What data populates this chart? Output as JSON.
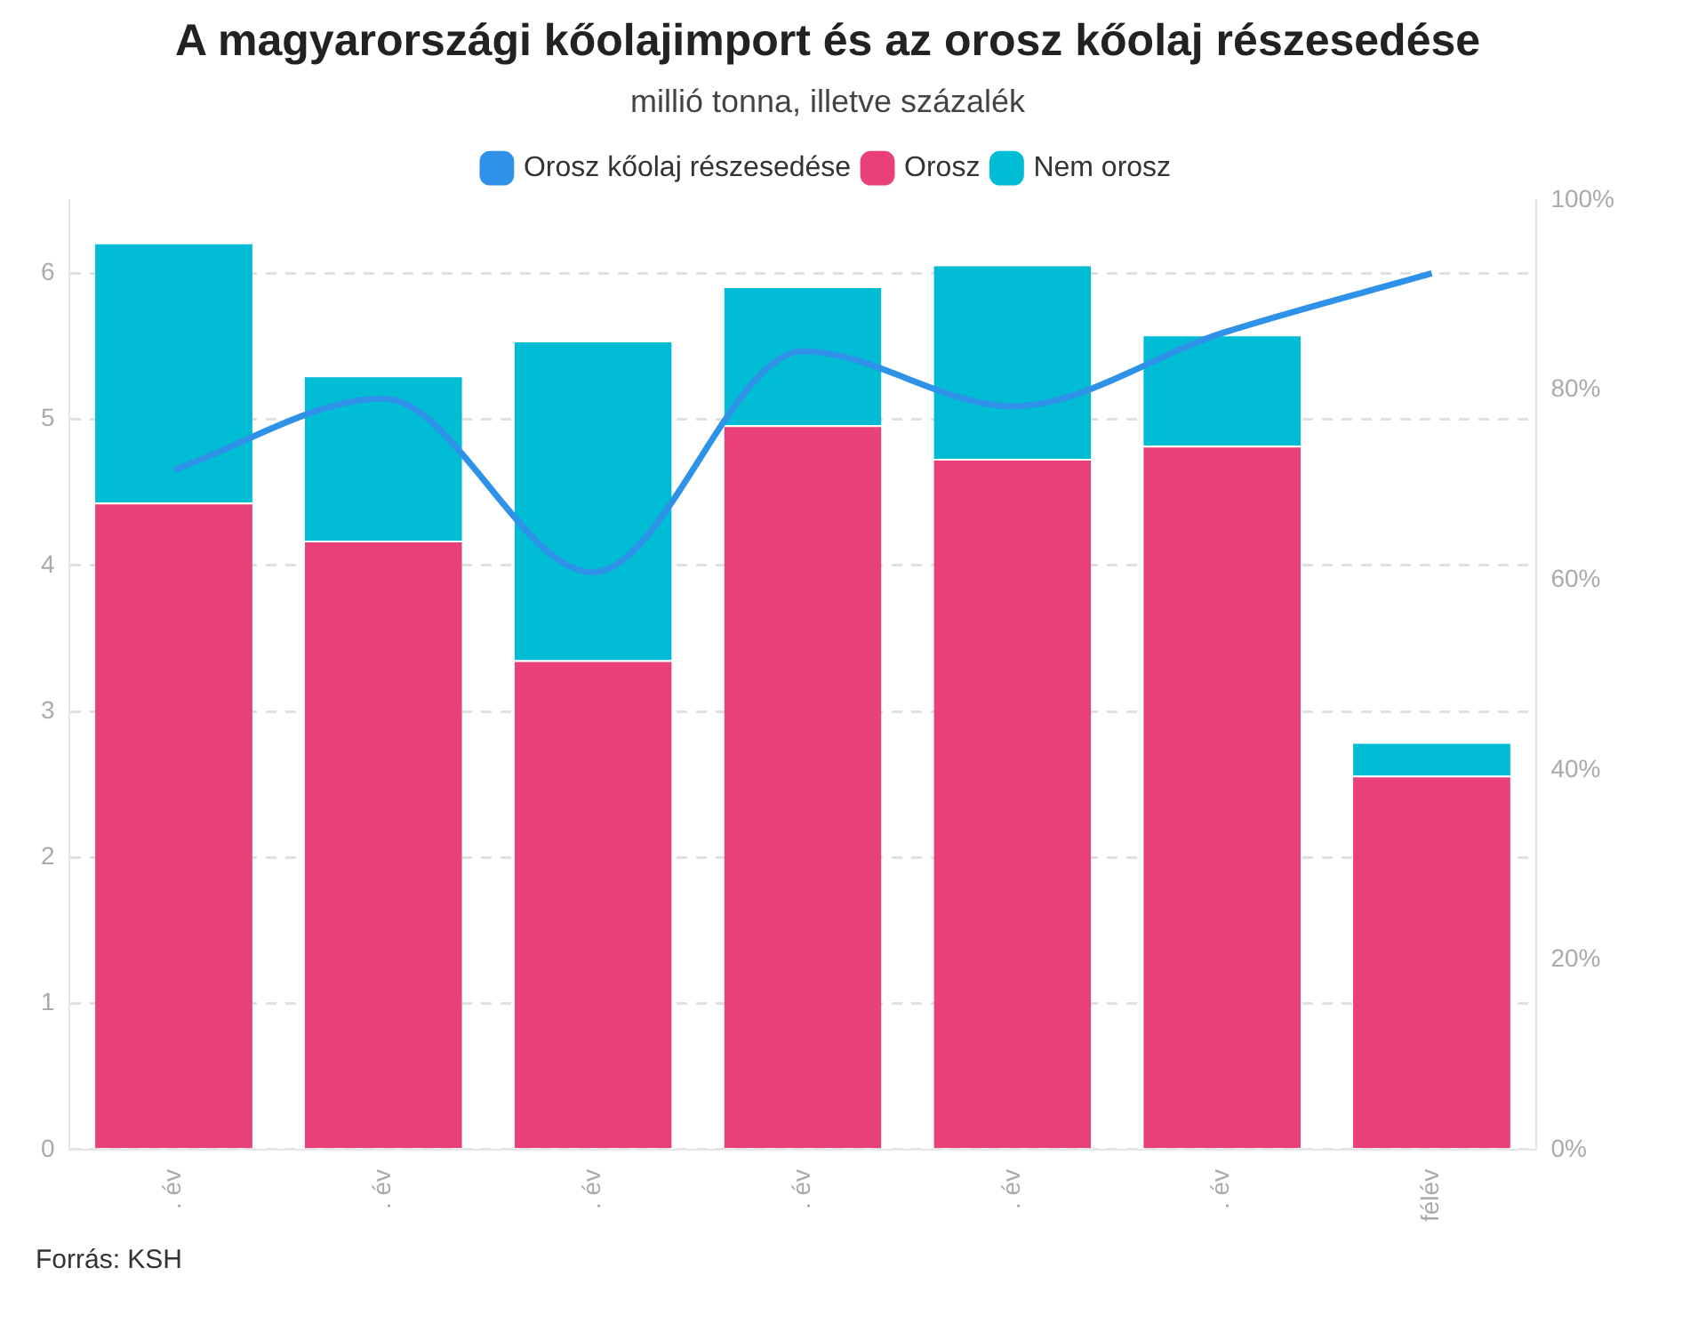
{
  "chart_data": {
    "type": "bar",
    "title": "A magyarországi kőolajimport és az orosz kőolaj részesedése",
    "subtitle": "millió tonna, illetve százalék",
    "categories": [
      ". év",
      ". év",
      ". év",
      ". év",
      ". év",
      ". év",
      "félév"
    ],
    "stacked": true,
    "legend": "top",
    "grid": "y",
    "line_style": "solid",
    "ylim": [
      0,
      6.5
    ],
    "yticks": [
      0,
      1,
      2,
      3,
      4,
      5,
      6
    ],
    "y2lim": [
      0,
      100
    ],
    "y2ticks": [
      {
        "value": 0,
        "label": "0%"
      },
      {
        "value": 20,
        "label": "20%"
      },
      {
        "value": 40,
        "label": "40%"
      },
      {
        "value": 60,
        "label": "60%"
      },
      {
        "value": 80,
        "label": "80%"
      },
      {
        "value": 100,
        "label": "100%"
      }
    ],
    "series": [
      {
        "name": "Orosz kőolaj részesedése",
        "type": "line",
        "axis": "y2",
        "color": "#2e93e8",
        "values": [
          71.6,
          79.1,
          60.8,
          84.1,
          78.3,
          86.0,
          92.3
        ]
      },
      {
        "name": "Orosz",
        "color": "#e8407a",
        "values": [
          4.43,
          4.17,
          3.35,
          4.96,
          4.73,
          4.82,
          2.56
        ]
      },
      {
        "name": "Nem orosz",
        "color": "#00bcd4",
        "values": [
          1.78,
          1.13,
          2.19,
          0.95,
          1.33,
          0.76,
          0.23
        ]
      }
    ],
    "annotations": [
      "Forrás: KSH"
    ]
  }
}
